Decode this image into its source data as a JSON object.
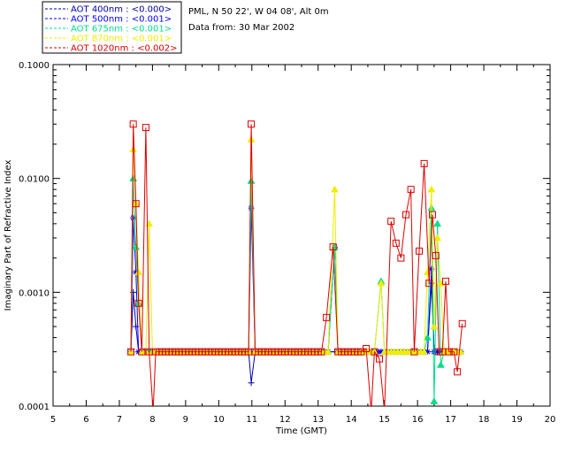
{
  "header": {
    "site_line": "PML, N 50 22', W 04 08', Alt 0m",
    "date_line": "Data from: 30 Mar 2002"
  },
  "legend": [
    {
      "label": "AOT  400nm : <0.000>",
      "color": "#0000aa"
    },
    {
      "label": "AOT  500nm : <0.001>",
      "color": "#0000ff"
    },
    {
      "label": "AOT  675nm : <0.001>",
      "color": "#00dd88"
    },
    {
      "label": "AOT  870nm : <0.001>",
      "color": "#eeee00"
    },
    {
      "label": "AOT 1020nm : <0.002>",
      "color": "#dd0000"
    }
  ],
  "chart_data": {
    "type": "line",
    "xlabel": "Time (GMT)",
    "ylabel": "Imaginary Part of Refractive Index",
    "xlim": [
      5,
      20
    ],
    "ylim": [
      0.0001,
      0.1
    ],
    "yscale": "log",
    "xticks": [
      "5",
      "6",
      "7",
      "8",
      "9",
      "10",
      "11",
      "12",
      "13",
      "14",
      "15",
      "16",
      "17",
      "18",
      "19",
      "20"
    ],
    "yticks": [
      {
        "value": 0.1,
        "label": "0.1000"
      },
      {
        "value": 0.01,
        "label": "0.0100"
      },
      {
        "value": 0.001,
        "label": "0.0010"
      },
      {
        "value": 0.0001,
        "label": "0.0001"
      }
    ],
    "series": [
      {
        "name": "AOT  400nm : <0.000>",
        "color": "#0000aa",
        "marker": "plus",
        "x": [
          7.35,
          7.42,
          7.5,
          7.58,
          7.68,
          7.8,
          7.9,
          8.0,
          8.1,
          8.2,
          8.3,
          8.4,
          8.5,
          8.6,
          8.7,
          8.8,
          8.9,
          9.0,
          9.1,
          9.2,
          9.3,
          9.4,
          9.5,
          9.6,
          9.7,
          9.8,
          9.9,
          10.0,
          10.1,
          10.2,
          10.3,
          10.4,
          10.5,
          10.6,
          10.7,
          10.8,
          10.9,
          10.98,
          11.1,
          11.2,
          11.3,
          11.4,
          11.5,
          11.6,
          11.7,
          11.8,
          11.9,
          12.0,
          12.1,
          12.2,
          12.3,
          12.4,
          12.5,
          12.6,
          12.7,
          12.8,
          12.9,
          13.0,
          13.1,
          13.2,
          13.3,
          13.5,
          13.6,
          13.7,
          13.8,
          13.9,
          14.0,
          14.1,
          14.2,
          14.3,
          14.4,
          14.5,
          14.6,
          14.7,
          14.8,
          14.9,
          15.0,
          15.1,
          15.2,
          15.3,
          15.4,
          15.5,
          15.6,
          15.7,
          15.8,
          15.9,
          16.0,
          16.1,
          16.2,
          16.3,
          16.42,
          16.5,
          16.6,
          16.7,
          16.8,
          16.9,
          17.0,
          17.1,
          17.2,
          17.3
        ],
        "y": [
          0.0003,
          0.001,
          0.0005,
          0.0003,
          0.0003,
          0.0003,
          0.0003,
          0.0003,
          0.0003,
          0.0003,
          0.0003,
          0.0003,
          0.0003,
          0.0003,
          0.0003,
          0.0003,
          0.0003,
          0.0003,
          0.0003,
          0.0003,
          0.0003,
          0.0003,
          0.0003,
          0.0003,
          0.0003,
          0.0003,
          0.0003,
          0.0003,
          0.0003,
          0.0003,
          0.0003,
          0.0003,
          0.0003,
          0.0003,
          0.0003,
          0.0003,
          0.0003,
          0.00016,
          0.0003,
          0.0003,
          0.0003,
          0.0003,
          0.0003,
          0.0003,
          0.0003,
          0.0003,
          0.0003,
          0.0003,
          0.0003,
          0.0003,
          0.0003,
          0.0003,
          0.0003,
          0.0003,
          0.0003,
          0.0003,
          0.0003,
          0.0003,
          0.0003,
          0.0003,
          0.0003,
          0.0003,
          0.0003,
          0.0003,
          0.0003,
          0.0003,
          0.0003,
          0.0003,
          0.0003,
          0.0003,
          0.0003,
          0.0003,
          0.0003,
          0.0003,
          0.0003,
          0.0003,
          0.0003,
          0.0003,
          0.0003,
          0.0003,
          0.0003,
          0.0003,
          0.0003,
          0.0003,
          0.0003,
          0.0003,
          0.0003,
          0.0003,
          0.0003,
          0.0003,
          0.0012,
          0.0003,
          0.0003,
          0.0003,
          0.0003,
          0.0003,
          0.0003,
          0.0003,
          0.0003,
          0.0003
        ]
      },
      {
        "name": "AOT  500nm : <0.001>",
        "color": "#0000ff",
        "marker": "star",
        "x": [
          7.35,
          7.42,
          7.5,
          7.58,
          7.68,
          7.8,
          7.9,
          8.0,
          8.1,
          8.2,
          8.3,
          8.4,
          8.5,
          8.6,
          8.7,
          8.8,
          8.9,
          9.0,
          9.1,
          9.2,
          9.3,
          9.4,
          9.5,
          9.6,
          9.7,
          9.8,
          9.9,
          10.0,
          10.1,
          10.2,
          10.3,
          10.4,
          10.5,
          10.6,
          10.7,
          10.8,
          10.9,
          10.98,
          11.1,
          11.2,
          11.3,
          11.4,
          11.5,
          11.6,
          11.7,
          11.8,
          11.9,
          12.0,
          12.1,
          12.2,
          12.3,
          12.4,
          12.5,
          12.6,
          12.7,
          12.8,
          12.9,
          13.0,
          13.1,
          13.2,
          13.3,
          13.5,
          13.6,
          13.7,
          13.8,
          13.9,
          14.0,
          14.1,
          14.2,
          14.3,
          14.4,
          14.5,
          14.6,
          14.7,
          14.8,
          14.9,
          15.0,
          15.1,
          15.2,
          15.3,
          15.4,
          15.5,
          15.6,
          15.7,
          15.8,
          15.9,
          16.0,
          16.1,
          16.2,
          16.3,
          16.42,
          16.5,
          16.6,
          16.7,
          16.8,
          16.9,
          17.0,
          17.1,
          17.2,
          17.3
        ],
        "y": [
          0.0003,
          0.0045,
          0.0015,
          0.0003,
          0.0003,
          0.0003,
          0.0003,
          0.0003,
          0.0003,
          0.0003,
          0.0003,
          0.0003,
          0.0003,
          0.0003,
          0.0003,
          0.0003,
          0.0003,
          0.0003,
          0.0003,
          0.0003,
          0.0003,
          0.0003,
          0.0003,
          0.0003,
          0.0003,
          0.0003,
          0.0003,
          0.0003,
          0.0003,
          0.0003,
          0.0003,
          0.0003,
          0.0003,
          0.0003,
          0.0003,
          0.0003,
          0.0003,
          0.0055,
          0.0003,
          0.0003,
          0.0003,
          0.0003,
          0.0003,
          0.0003,
          0.0003,
          0.0003,
          0.0003,
          0.0003,
          0.0003,
          0.0003,
          0.0003,
          0.0003,
          0.0003,
          0.0003,
          0.0003,
          0.0003,
          0.0003,
          0.0003,
          0.0003,
          0.0003,
          0.0003,
          0.0025,
          0.0003,
          0.0003,
          0.0003,
          0.0003,
          0.0003,
          0.0003,
          0.0003,
          0.0003,
          0.0003,
          0.0003,
          0.0003,
          0.0003,
          0.0003,
          0.0003,
          0.0003,
          0.0003,
          0.0003,
          0.0003,
          0.0003,
          0.0003,
          0.0003,
          0.0003,
          0.0003,
          0.0003,
          0.0003,
          0.0003,
          0.0003,
          0.0003,
          0.0016,
          0.0003,
          0.0003,
          0.0003,
          0.0003,
          0.0003,
          0.0003,
          0.0003,
          0.0003,
          0.0003
        ]
      },
      {
        "name": "AOT  675nm : <0.001>",
        "color": "#00dd88",
        "marker": "triangle",
        "x": [
          7.35,
          7.42,
          7.5,
          7.58,
          7.68,
          7.8,
          7.9,
          8.0,
          8.1,
          8.2,
          8.3,
          8.4,
          8.5,
          8.6,
          8.7,
          8.8,
          8.9,
          9.0,
          9.1,
          9.2,
          9.3,
          9.4,
          9.5,
          9.6,
          9.7,
          9.8,
          9.9,
          10.0,
          10.1,
          10.2,
          10.3,
          10.4,
          10.5,
          10.6,
          10.7,
          10.8,
          10.9,
          10.98,
          11.1,
          11.2,
          11.3,
          11.4,
          11.5,
          11.6,
          11.7,
          11.8,
          11.9,
          12.0,
          12.1,
          12.2,
          12.3,
          12.4,
          12.5,
          12.6,
          12.7,
          12.8,
          12.9,
          13.0,
          13.1,
          13.2,
          13.3,
          13.5,
          13.6,
          13.7,
          13.8,
          13.9,
          14.0,
          14.1,
          14.2,
          14.3,
          14.4,
          14.5,
          14.6,
          14.7,
          14.9,
          15.0,
          15.1,
          15.2,
          15.3,
          15.4,
          15.5,
          15.6,
          15.7,
          15.8,
          15.9,
          16.0,
          16.1,
          16.2,
          16.3,
          16.42,
          16.5,
          16.6,
          16.7,
          16.8,
          16.9,
          17.0,
          17.1,
          17.2,
          17.3
        ],
        "y": [
          0.0003,
          0.01,
          0.0025,
          0.0008,
          0.0003,
          0.0003,
          0.0003,
          0.0003,
          0.0003,
          0.0003,
          0.0003,
          0.0003,
          0.0003,
          0.0003,
          0.0003,
          0.0003,
          0.0003,
          0.0003,
          0.0003,
          0.0003,
          0.0003,
          0.0003,
          0.0003,
          0.0003,
          0.0003,
          0.0003,
          0.0003,
          0.0003,
          0.0003,
          0.0003,
          0.0003,
          0.0003,
          0.0003,
          0.0003,
          0.0003,
          0.0003,
          0.0003,
          0.0095,
          0.0003,
          0.0003,
          0.0003,
          0.0003,
          0.0003,
          0.0003,
          0.0003,
          0.0003,
          0.0003,
          0.0003,
          0.0003,
          0.0003,
          0.0003,
          0.0003,
          0.0003,
          0.0003,
          0.0003,
          0.0003,
          0.0003,
          0.0003,
          0.0003,
          0.0003,
          0.0003,
          0.0025,
          0.0003,
          0.0003,
          0.0003,
          0.0003,
          0.0003,
          0.0003,
          0.0003,
          0.0003,
          0.0003,
          0.0003,
          0.0003,
          0.0003,
          0.00125,
          0.0003,
          0.0003,
          0.0003,
          0.0003,
          0.0003,
          0.0003,
          0.0003,
          0.0003,
          0.0003,
          0.0003,
          0.0003,
          0.0003,
          0.0003,
          0.0004,
          0.0055,
          0.00011,
          0.004,
          0.00023,
          0.0003,
          0.0003,
          0.0003,
          0.0003,
          0.0003,
          0.0003
        ]
      },
      {
        "name": "AOT  870nm : <0.001>",
        "color": "#eeee00",
        "marker": "triangle",
        "x": [
          7.35,
          7.42,
          7.5,
          7.58,
          7.68,
          7.8,
          7.9,
          8.0,
          8.1,
          8.2,
          8.3,
          8.4,
          8.5,
          8.6,
          8.7,
          8.8,
          8.9,
          9.0,
          9.1,
          9.2,
          9.3,
          9.4,
          9.5,
          9.6,
          9.7,
          9.8,
          9.9,
          10.0,
          10.1,
          10.2,
          10.3,
          10.4,
          10.5,
          10.6,
          10.7,
          10.8,
          10.9,
          10.98,
          11.1,
          11.2,
          11.3,
          11.4,
          11.5,
          11.6,
          11.7,
          11.8,
          11.9,
          12.0,
          12.1,
          12.2,
          12.3,
          12.4,
          12.5,
          12.6,
          12.7,
          12.8,
          12.9,
          13.0,
          13.1,
          13.2,
          13.3,
          13.5,
          13.6,
          13.7,
          13.8,
          13.9,
          14.0,
          14.1,
          14.2,
          14.3,
          14.4,
          14.5,
          14.6,
          14.7,
          14.9,
          15.0,
          15.1,
          15.2,
          15.3,
          15.4,
          15.5,
          15.6,
          15.7,
          15.8,
          15.9,
          16.0,
          16.1,
          16.2,
          16.3,
          16.42,
          16.5,
          16.6,
          16.7,
          16.8,
          16.9,
          17.0,
          17.1,
          17.2,
          17.3
        ],
        "y": [
          0.0003,
          0.018,
          0.006,
          0.0015,
          0.0003,
          0.0003,
          0.004,
          0.0003,
          0.0003,
          0.0003,
          0.0003,
          0.0003,
          0.0003,
          0.0003,
          0.0003,
          0.0003,
          0.0003,
          0.0003,
          0.0003,
          0.0003,
          0.0003,
          0.0003,
          0.0003,
          0.0003,
          0.0003,
          0.0003,
          0.0003,
          0.0003,
          0.0003,
          0.0003,
          0.0003,
          0.0003,
          0.0003,
          0.0003,
          0.0003,
          0.0003,
          0.0003,
          0.022,
          0.0003,
          0.0003,
          0.0003,
          0.0003,
          0.0003,
          0.0003,
          0.0003,
          0.0003,
          0.0003,
          0.0003,
          0.0003,
          0.0003,
          0.0003,
          0.0003,
          0.0003,
          0.0003,
          0.0003,
          0.0003,
          0.0003,
          0.0003,
          0.0003,
          0.0003,
          0.0003,
          0.008,
          0.0003,
          0.0003,
          0.0003,
          0.0003,
          0.0003,
          0.0003,
          0.0003,
          0.0003,
          0.0003,
          0.0003,
          0.0003,
          0.0003,
          0.0012,
          0.0003,
          0.0003,
          0.0003,
          0.0003,
          0.0003,
          0.0003,
          0.0003,
          0.0003,
          0.0003,
          0.0003,
          0.0003,
          0.0003,
          0.0003,
          0.0015,
          0.008,
          0.0005,
          0.003,
          0.0012,
          0.0003,
          0.0003,
          0.0003,
          0.0003,
          0.0003,
          0.0003
        ]
      },
      {
        "name": "AOT 1020nm : <0.002>",
        "color": "#dd0000",
        "marker": "square",
        "x": [
          7.35,
          7.42,
          7.5,
          7.58,
          7.68,
          7.8,
          7.9,
          8.02,
          8.1,
          8.2,
          8.3,
          8.4,
          8.5,
          8.6,
          8.7,
          8.8,
          8.9,
          9.0,
          9.1,
          9.2,
          9.3,
          9.4,
          9.5,
          9.6,
          9.7,
          9.8,
          9.9,
          10.0,
          10.1,
          10.2,
          10.3,
          10.4,
          10.5,
          10.6,
          10.7,
          10.8,
          10.9,
          10.98,
          11.1,
          11.2,
          11.3,
          11.4,
          11.5,
          11.6,
          11.7,
          11.8,
          11.9,
          12.0,
          12.1,
          12.2,
          12.3,
          12.4,
          12.5,
          12.6,
          12.7,
          12.8,
          12.9,
          13.0,
          13.1,
          13.25,
          13.45,
          13.6,
          13.7,
          13.8,
          13.9,
          14.0,
          14.1,
          14.2,
          14.3,
          14.45,
          14.6,
          14.7,
          14.85,
          15.0,
          15.2,
          15.35,
          15.5,
          15.65,
          15.8,
          15.9,
          16.05,
          16.2,
          16.35,
          16.45,
          16.55,
          16.65,
          16.75,
          16.85,
          16.95,
          17.1,
          17.2,
          17.35
        ],
        "y": [
          0.0003,
          0.03,
          0.006,
          0.0008,
          0.0003,
          0.028,
          0.0003,
          9e-05,
          0.0003,
          0.0003,
          0.0003,
          0.0003,
          0.0003,
          0.0003,
          0.0003,
          0.0003,
          0.0003,
          0.0003,
          0.0003,
          0.0003,
          0.0003,
          0.0003,
          0.0003,
          0.0003,
          0.0003,
          0.0003,
          0.0003,
          0.0003,
          0.0003,
          0.0003,
          0.0003,
          0.0003,
          0.0003,
          0.0003,
          0.0003,
          0.0003,
          0.0003,
          0.03,
          0.0003,
          0.0003,
          0.0003,
          0.0003,
          0.0003,
          0.0003,
          0.0003,
          0.0003,
          0.0003,
          0.0003,
          0.0003,
          0.0003,
          0.0003,
          0.0003,
          0.0003,
          0.0003,
          0.0003,
          0.0003,
          0.0003,
          0.0003,
          0.0003,
          0.0006,
          0.0025,
          0.0003,
          0.0003,
          0.0003,
          0.0003,
          0.0003,
          0.0003,
          0.0003,
          0.0003,
          0.00032,
          9e-05,
          0.0003,
          0.00026,
          9e-05,
          0.0042,
          0.0027,
          0.002,
          0.0048,
          0.008,
          0.0003,
          0.0023,
          0.0135,
          0.0012,
          0.0048,
          0.0021,
          0.0003,
          0.0003,
          0.00125,
          0.0003,
          0.0003,
          0.0002,
          0.00053
        ]
      }
    ]
  }
}
